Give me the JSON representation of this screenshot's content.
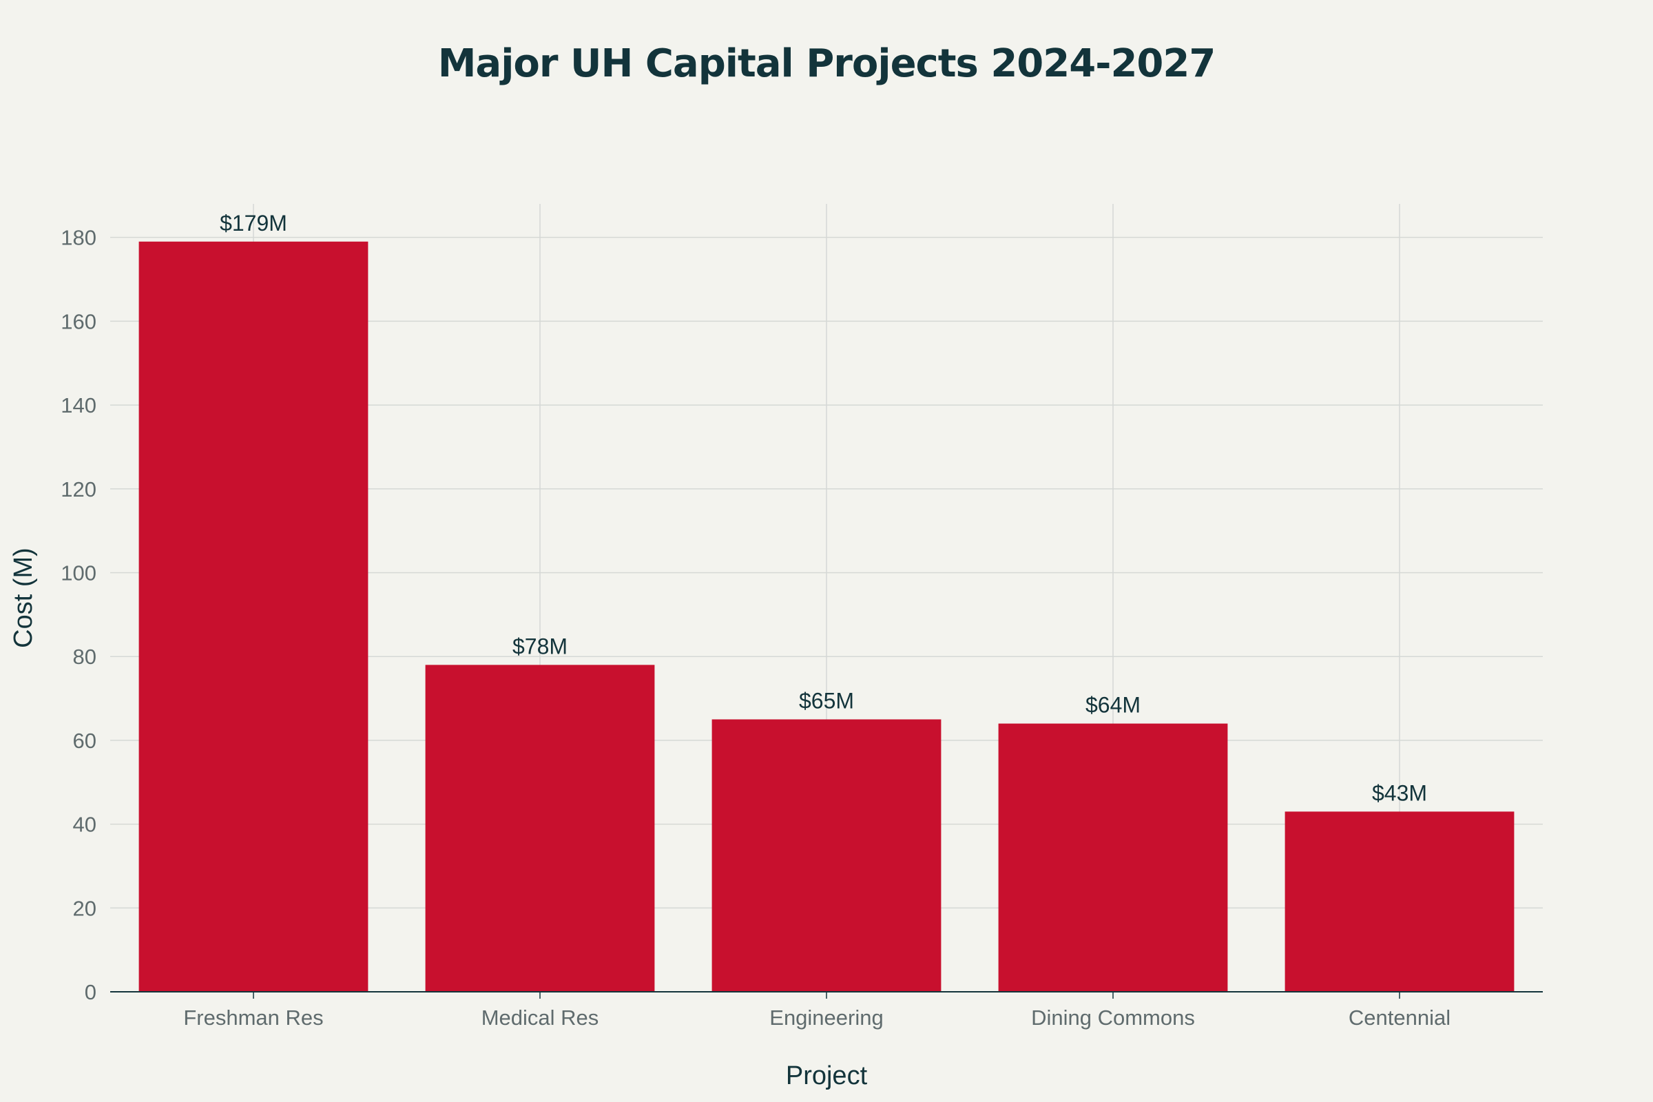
{
  "chart_data": {
    "type": "bar",
    "title": "Major UH Capital Projects 2024-2027",
    "xlabel": "Project",
    "ylabel": "Cost (M)",
    "categories": [
      "Freshman Res",
      "Medical Res",
      "Engineering",
      "Dining Commons",
      "Centennial"
    ],
    "values": [
      179,
      78,
      65,
      64,
      43
    ],
    "data_labels": [
      "$179M",
      "$78M",
      "$65M",
      "$64M",
      "$43M"
    ],
    "ylim": [
      0,
      188
    ],
    "yticks": [
      0,
      20,
      40,
      60,
      80,
      100,
      120,
      140,
      160,
      180
    ],
    "grid": true,
    "legend": "none",
    "colors": {
      "bar": "#c8102e",
      "background": "#f3f3ee",
      "grid": "#d5d8d5",
      "axis": "#13343b",
      "text": "#13343b",
      "tick_text": "#5f6b6d"
    }
  }
}
